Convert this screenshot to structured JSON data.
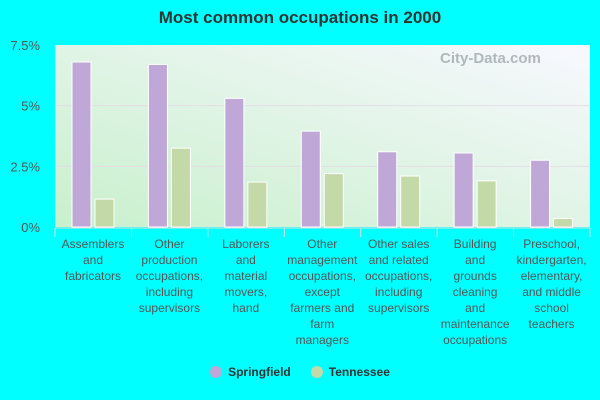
{
  "chart_data": {
    "type": "bar",
    "title": "Most common occupations in 2000",
    "categories": [
      "Assemblers and fabricators",
      "Other production occupations, including supervisors",
      "Laborers and material movers, hand",
      "Other management occupations, except farmers and farm managers",
      "Other sales and related occupations, including supervisors",
      "Building and grounds cleaning and maintenance occupations",
      "Preschool, kindergarten, elementary, and middle school teachers"
    ],
    "category_lines": [
      [
        "Assemblers",
        "and",
        "fabricators"
      ],
      [
        "Other",
        "production",
        "occupations,",
        "including",
        "supervisors"
      ],
      [
        "Laborers",
        "and",
        "material",
        "movers,",
        "hand"
      ],
      [
        "Other",
        "management",
        "occupations,",
        "except",
        "farmers and",
        "farm",
        "managers"
      ],
      [
        "Other sales",
        "and related",
        "occupations,",
        "including",
        "supervisors"
      ],
      [
        "Building",
        "and",
        "grounds",
        "cleaning",
        "and",
        "maintenance",
        "occupations"
      ],
      [
        "Preschool,",
        "kindergarten,",
        "elementary,",
        "and middle",
        "school",
        "teachers"
      ]
    ],
    "series": [
      {
        "name": "Springfield",
        "color": "#bfa8d8",
        "values": [
          6.8,
          6.7,
          5.3,
          3.95,
          3.1,
          3.05,
          2.75
        ]
      },
      {
        "name": "Tennessee",
        "color": "#c4d9a8",
        "values": [
          1.15,
          3.25,
          1.85,
          2.2,
          2.1,
          1.9,
          0.35
        ]
      }
    ],
    "yticks": [
      "0%",
      "2.5%",
      "5%",
      "7.5%"
    ],
    "ytick_values": [
      0,
      2.5,
      5,
      7.5
    ],
    "ylim": [
      0,
      7.5
    ],
    "legend": "bottom",
    "watermark": "City-Data.com"
  }
}
